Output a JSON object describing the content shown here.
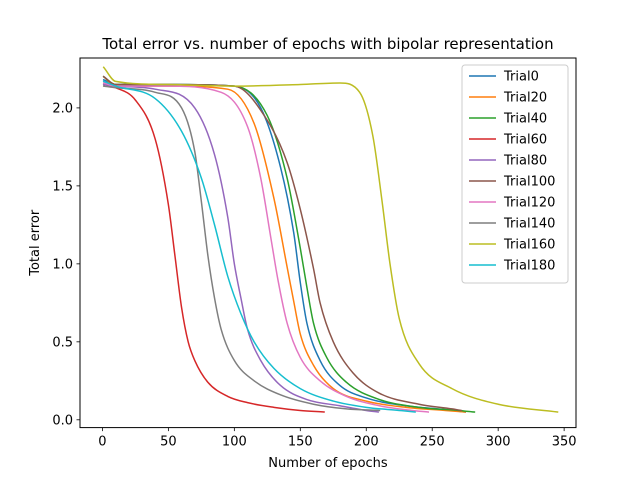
{
  "chart_data": {
    "type": "line",
    "title": "Total error vs. number of epochs with bipolar representation",
    "xlabel": "Number of epochs",
    "ylabel": "Total error",
    "xlim": [
      -17,
      359
    ],
    "ylim": [
      -0.05,
      2.32
    ],
    "xticks": [
      0,
      50,
      100,
      150,
      200,
      250,
      300,
      350
    ],
    "yticks": [
      0.0,
      0.5,
      1.0,
      1.5,
      2.0
    ],
    "yticklabels": [
      "0.0",
      "0.5",
      "1.0",
      "1.5",
      "2.0"
    ],
    "grid": false,
    "legend_position": "top-right",
    "series": [
      {
        "name": "Trial0",
        "color": "#1f77b4",
        "x": [
          1,
          10,
          50,
          100,
          120,
          135,
          145,
          150,
          155,
          165,
          180,
          200,
          230,
          260,
          275
        ],
        "y": [
          2.18,
          2.15,
          2.15,
          2.14,
          2.0,
          1.62,
          1.2,
          0.88,
          0.62,
          0.38,
          0.22,
          0.14,
          0.09,
          0.065,
          0.05
        ]
      },
      {
        "name": "Trial20",
        "color": "#ff7f0e",
        "x": [
          1,
          10,
          50,
          95,
          115,
          130,
          140,
          145,
          150,
          160,
          175,
          200,
          230,
          260,
          275
        ],
        "y": [
          2.2,
          2.14,
          2.14,
          2.12,
          1.9,
          1.42,
          0.98,
          0.76,
          0.55,
          0.35,
          0.2,
          0.12,
          0.08,
          0.06,
          0.05
        ]
      },
      {
        "name": "Trial40",
        "color": "#2ca02c",
        "x": [
          1,
          10,
          50,
          100,
          125,
          140,
          150,
          155,
          160,
          170,
          185,
          210,
          240,
          270,
          282
        ],
        "y": [
          2.2,
          2.15,
          2.15,
          2.14,
          1.95,
          1.55,
          1.1,
          0.85,
          0.62,
          0.4,
          0.24,
          0.13,
          0.08,
          0.06,
          0.05
        ]
      },
      {
        "name": "Trial60",
        "color": "#d62728",
        "x": [
          1,
          10,
          25,
          40,
          50,
          55,
          60,
          65,
          70,
          80,
          95,
          110,
          130,
          150,
          168
        ],
        "y": [
          2.15,
          2.13,
          2.05,
          1.8,
          1.38,
          1.05,
          0.72,
          0.5,
          0.38,
          0.24,
          0.15,
          0.11,
          0.08,
          0.06,
          0.05
        ]
      },
      {
        "name": "Trial80",
        "color": "#9467bd",
        "x": [
          1,
          10,
          40,
          70,
          85,
          95,
          100,
          105,
          110,
          120,
          135,
          155,
          180,
          200,
          209
        ],
        "y": [
          2.15,
          2.14,
          2.12,
          2.0,
          1.7,
          1.3,
          1.0,
          0.78,
          0.58,
          0.38,
          0.22,
          0.13,
          0.09,
          0.06,
          0.05
        ]
      },
      {
        "name": "Trial100",
        "color": "#8c564b",
        "x": [
          1,
          10,
          50,
          100,
          125,
          140,
          150,
          160,
          165,
          175,
          190,
          210,
          240,
          265,
          272
        ],
        "y": [
          2.2,
          2.15,
          2.15,
          2.14,
          1.92,
          1.65,
          1.35,
          0.97,
          0.75,
          0.5,
          0.3,
          0.17,
          0.1,
          0.07,
          0.06
        ]
      },
      {
        "name": "Trial120",
        "color": "#e377c2",
        "x": [
          1,
          10,
          50,
          90,
          110,
          120,
          128,
          133,
          140,
          150,
          165,
          185,
          210,
          235,
          247
        ],
        "y": [
          2.16,
          2.14,
          2.14,
          2.1,
          1.88,
          1.55,
          1.15,
          0.9,
          0.62,
          0.4,
          0.25,
          0.15,
          0.09,
          0.06,
          0.05
        ]
      },
      {
        "name": "Trial140",
        "color": "#7f7f7f",
        "x": [
          1,
          10,
          40,
          60,
          70,
          75,
          80,
          85,
          90,
          100,
          115,
          135,
          160,
          185,
          210
        ],
        "y": [
          2.14,
          2.13,
          2.1,
          2.0,
          1.72,
          1.4,
          1.05,
          0.78,
          0.58,
          0.38,
          0.25,
          0.16,
          0.1,
          0.07,
          0.06
        ]
      },
      {
        "name": "Trial160",
        "color": "#bcbd22",
        "x": [
          1,
          10,
          50,
          100,
          150,
          180,
          195,
          205,
          212,
          218,
          225,
          240,
          265,
          300,
          345
        ],
        "y": [
          2.26,
          2.17,
          2.15,
          2.14,
          2.15,
          2.16,
          2.1,
          1.82,
          1.4,
          1.0,
          0.65,
          0.36,
          0.2,
          0.1,
          0.05
        ]
      },
      {
        "name": "Trial180",
        "color": "#17becf",
        "x": [
          1,
          10,
          40,
          60,
          75,
          85,
          95,
          105,
          115,
          130,
          150,
          175,
          200,
          225,
          237
        ],
        "y": [
          2.17,
          2.14,
          2.06,
          1.85,
          1.55,
          1.25,
          0.92,
          0.68,
          0.5,
          0.33,
          0.2,
          0.12,
          0.08,
          0.06,
          0.05
        ]
      }
    ]
  }
}
